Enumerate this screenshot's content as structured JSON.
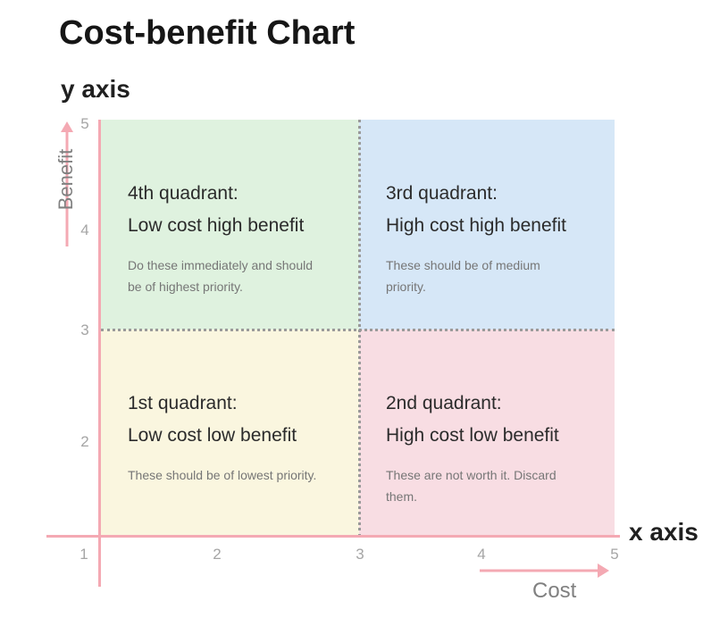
{
  "title": "Cost-benefit Chart",
  "y_axis_title": "y axis",
  "x_axis_title": "x axis",
  "y_axis_label": "Benefit",
  "x_axis_label": "Cost",
  "x_ticks": [
    "1",
    "2",
    "3",
    "4",
    "5"
  ],
  "y_ticks": [
    "2",
    "3",
    "4",
    "5"
  ],
  "quadrants": {
    "q4": {
      "heading": "4th quadrant:",
      "subheading": "Low cost high benefit",
      "description": "Do these immediately and should be of highest priority.",
      "color": "#dff2df"
    },
    "q3": {
      "heading": "3rd quadrant:",
      "subheading": "High cost high benefit",
      "description": "These should be of medium priority.",
      "color": "#d6e7f7"
    },
    "q1": {
      "heading": "1st quadrant:",
      "subheading": "Low cost low benefit",
      "description": "These should be of lowest priority.",
      "color": "#faf6df"
    },
    "q2": {
      "heading": "2nd quadrant:",
      "subheading": "High cost low benefit",
      "description": "These are not worth it. Discard them.",
      "color": "#f8dde3"
    }
  },
  "axis_color": "#f4a9b3"
}
